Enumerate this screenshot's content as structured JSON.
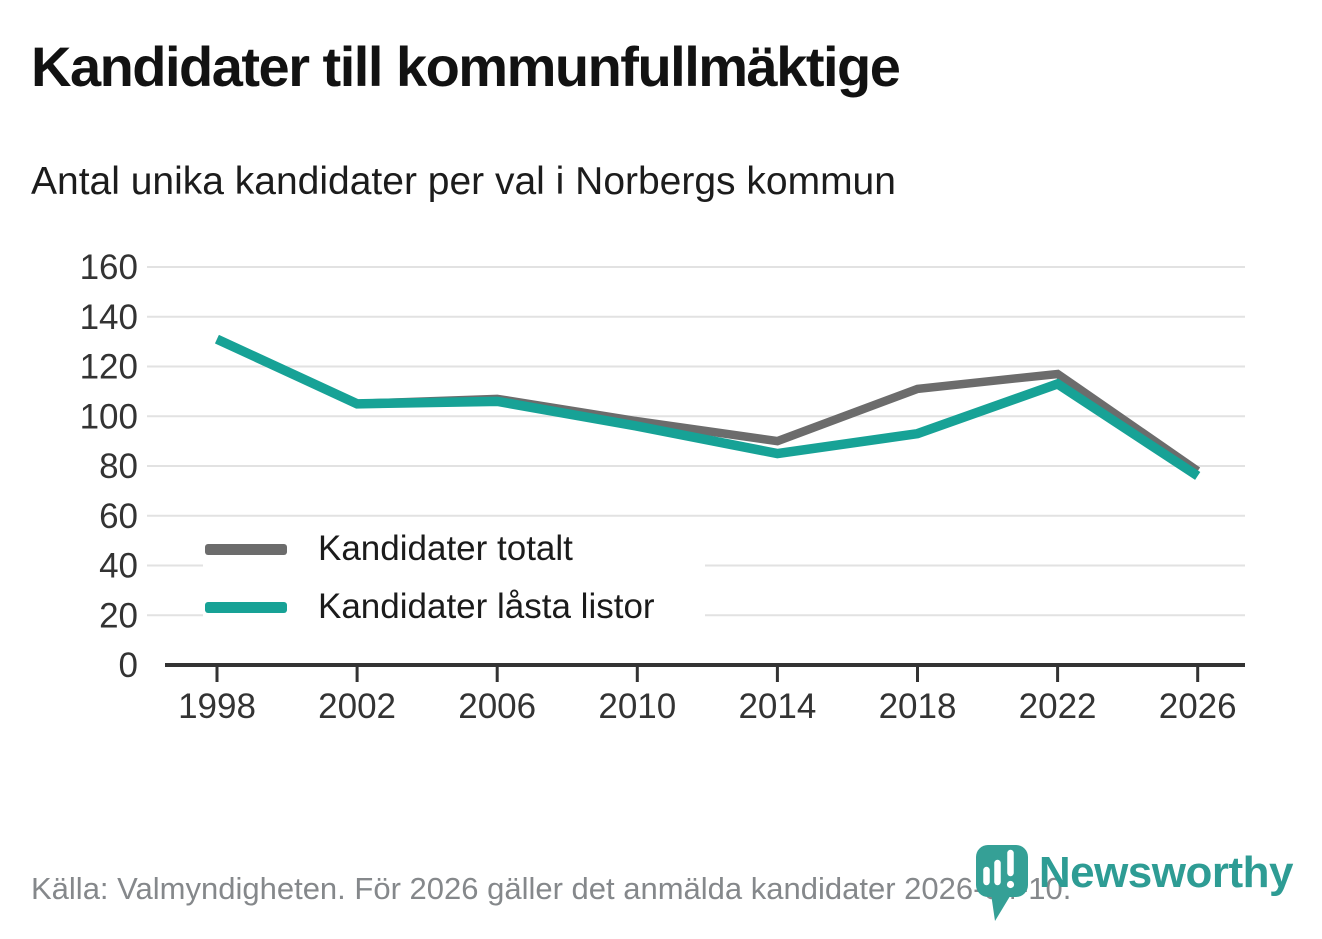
{
  "title": "Kandidater till kommunfullmäktige",
  "subtitle": "Antal unika kandidater per val i Norbergs kommun",
  "footer": {
    "source_text": "Källa: Valmyndigheten. För 2026 gäller det anmälda kandidater 2026-04-10."
  },
  "branding": {
    "logo_text": "Newsworthy",
    "logo_icon": "newsworthy-pin-barchart-icon",
    "brand_color": "#2e9c94"
  },
  "colors": {
    "series_total": "#6c6c6c",
    "series_locked": "#17a296",
    "gridline": "#e2e2e2",
    "axis": "#333333",
    "tick_text": "#333333"
  },
  "chart_data": {
    "type": "line",
    "title": "Kandidater till kommunfullmäktige",
    "subtitle": "Antal unika kandidater per val i Norbergs kommun",
    "categories": [
      1998,
      2002,
      2006,
      2010,
      2014,
      2018,
      2022,
      2026
    ],
    "series": [
      {
        "name": "Kandidater totalt",
        "color": "#6c6c6c",
        "values": [
          131,
          105,
          107,
          98,
          90,
          111,
          117,
          78
        ]
      },
      {
        "name": "Kandidater låsta listor",
        "color": "#17a296",
        "values": [
          131,
          105,
          106,
          96,
          85,
          93,
          113,
          76
        ]
      }
    ],
    "xlabel": "",
    "ylabel": "",
    "ylim": [
      0,
      160
    ],
    "ytick_step": 20,
    "yticklabels": [
      "0",
      "20",
      "40",
      "60",
      "80",
      "100",
      "120",
      "140",
      "160"
    ],
    "xticklabels": [
      "1998",
      "2002",
      "2006",
      "2010",
      "2014",
      "2018",
      "2022",
      "2026"
    ],
    "grid": "horizontal",
    "legend_position": "inside-bottom-left"
  }
}
